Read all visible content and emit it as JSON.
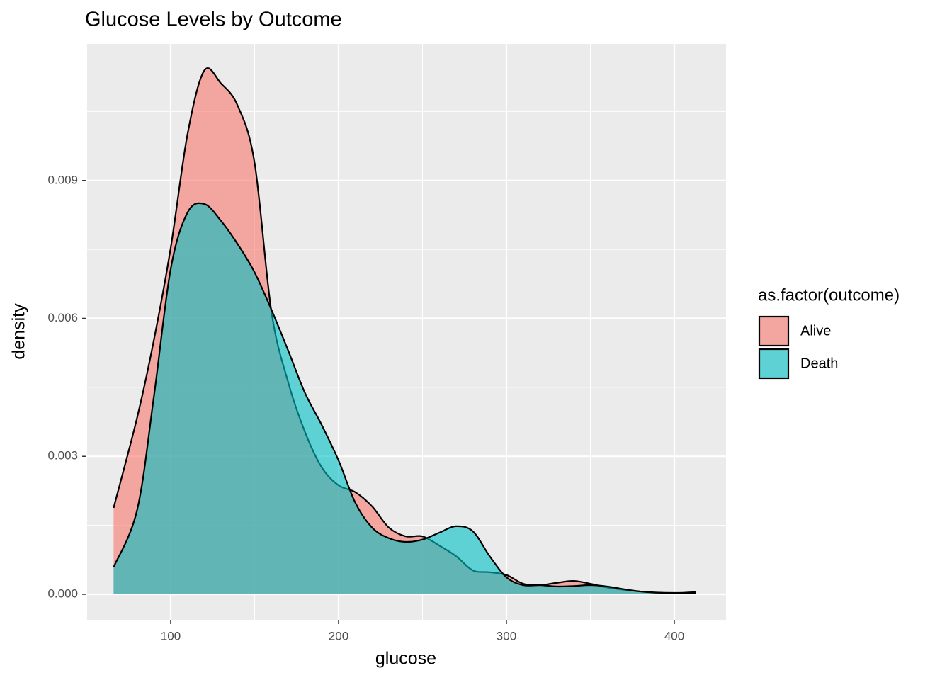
{
  "chart_data": {
    "type": "density",
    "title": "Glucose Levels by Outcome",
    "x_label": "glucose",
    "y_label": "density",
    "legend_title": "as.factor(outcome)",
    "legend_position": "right",
    "x": [
      66,
      80,
      90,
      100,
      110,
      120,
      130,
      140,
      150,
      160,
      170,
      180,
      190,
      200,
      210,
      220,
      230,
      240,
      250,
      260,
      270,
      280,
      290,
      300,
      310,
      320,
      330,
      340,
      350,
      360,
      380,
      400,
      413
    ],
    "series": [
      {
        "name": "Alive",
        "color": "#F8766D",
        "values": [
          0.00188,
          0.00384,
          0.00553,
          0.00753,
          0.01,
          0.01139,
          0.01111,
          0.01062,
          0.00938,
          0.00615,
          0.00461,
          0.00353,
          0.00276,
          0.00237,
          0.00222,
          0.00191,
          0.00145,
          0.00126,
          0.00126,
          0.00106,
          0.00083,
          0.00052,
          0.00048,
          0.00042,
          0.00023,
          0.0002,
          0.00025,
          0.00029,
          0.00023,
          0.00015,
          6e-05,
          3e-05,
          5e-05
        ]
      },
      {
        "name": "Death",
        "color": "#00BFC4",
        "values": [
          0.00059,
          0.00183,
          0.0043,
          0.00707,
          0.0083,
          0.00849,
          0.00812,
          0.00761,
          0.007,
          0.00619,
          0.0053,
          0.00438,
          0.00368,
          0.00291,
          0.00199,
          0.00145,
          0.00122,
          0.00114,
          0.00119,
          0.00134,
          0.00148,
          0.00137,
          0.00083,
          0.00037,
          0.0002,
          0.0002,
          0.00017,
          0.00018,
          0.0002,
          0.00017,
          6e-05,
          2e-05,
          3e-05
        ]
      }
    ],
    "xlim": [
      49.8,
      430.8
    ],
    "xticks": [
      100,
      200,
      300,
      400
    ],
    "x_minor_ticks": [
      50,
      150,
      250,
      350
    ],
    "ylim": [
      -0.000555,
      0.01197
    ],
    "yticks": [
      {
        "value": 0,
        "label": "0.000"
      },
      {
        "value": 0.003,
        "label": "0.003"
      },
      {
        "value": 0.006,
        "label": "0.006"
      },
      {
        "value": 0.009,
        "label": "0.009"
      }
    ],
    "y_minor_ticks": [
      0.0015,
      0.0045,
      0.0075,
      0.0105
    ],
    "grid": true,
    "fill_opacity": 0.6
  }
}
